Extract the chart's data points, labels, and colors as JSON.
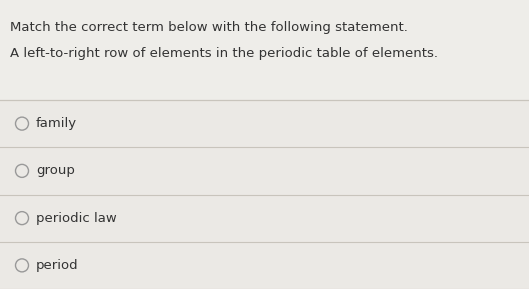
{
  "title_line1": "Match the correct term below with the following statement.",
  "title_line2": "A left-to-right row of elements in the periodic table of elements.",
  "options": [
    "family",
    "group",
    "periodic law",
    "period"
  ],
  "bg_color": "#f0efee",
  "title_bg_color": "#eeede9",
  "option_bg_color": "#ebe9e5",
  "separator_color": "#c8c4bc",
  "text_color": "#333333",
  "circle_color": "#999999",
  "title_fontsize": 9.5,
  "option_fontsize": 9.5,
  "figsize": [
    5.29,
    2.89
  ],
  "dpi": 100
}
